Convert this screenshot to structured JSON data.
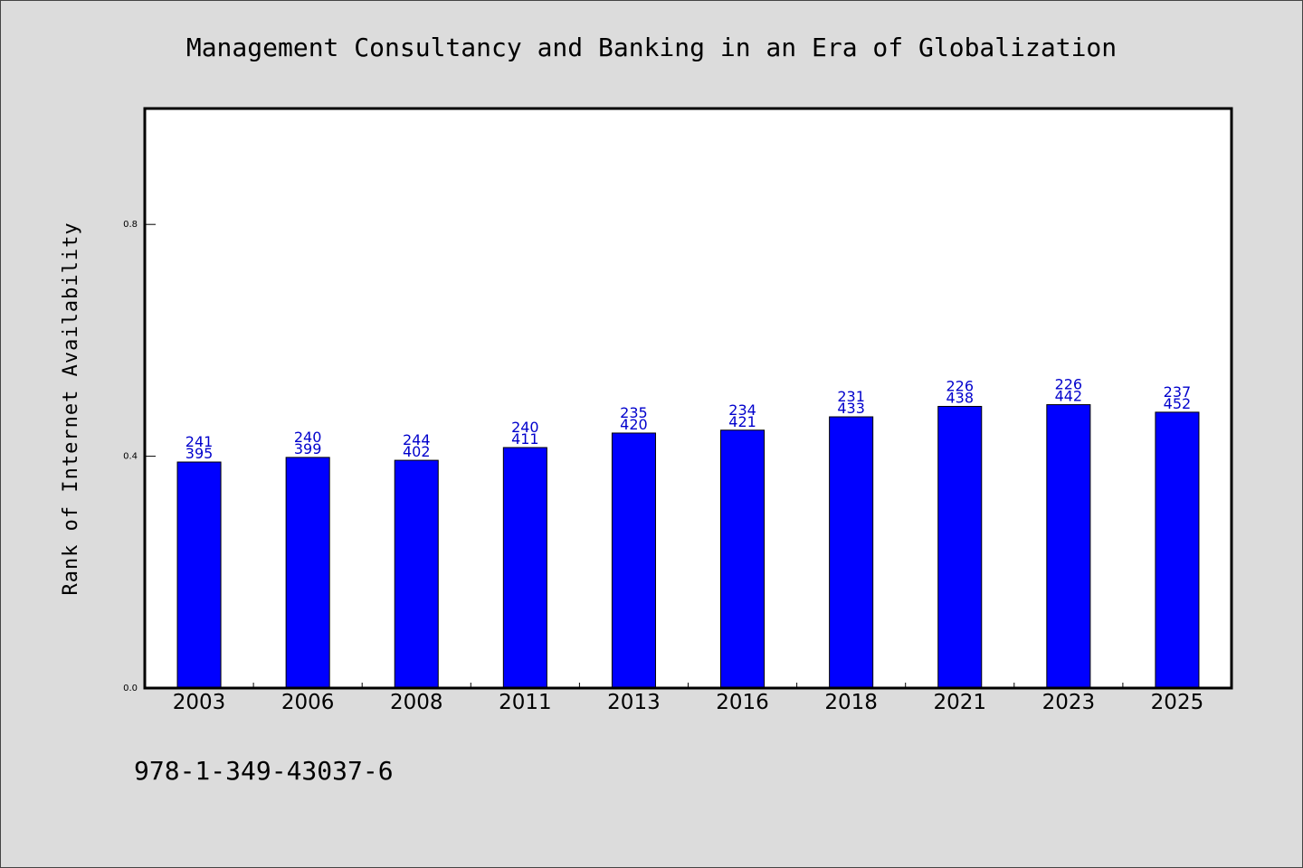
{
  "chart_data": {
    "type": "bar",
    "title": "Management Consultancy and Banking in an Era of Globalization",
    "xlabel": "",
    "ylabel": "Rank of Internet Availability",
    "categories": [
      "2003",
      "2006",
      "2008",
      "2011",
      "2013",
      "2016",
      "2018",
      "2021",
      "2023",
      "2025"
    ],
    "values": [
      0.39,
      0.398,
      0.393,
      0.415,
      0.44,
      0.445,
      0.468,
      0.486,
      0.489,
      0.476
    ],
    "data_labels_top": [
      "241",
      "240",
      "244",
      "240",
      "235",
      "234",
      "231",
      "226",
      "226",
      "237"
    ],
    "data_labels_bottom": [
      "395",
      "399",
      "402",
      "411",
      "420",
      "421",
      "433",
      "438",
      "442",
      "452"
    ],
    "ylim": [
      0.0,
      1.0
    ],
    "yticks": [
      0.0,
      0.4,
      0.8
    ],
    "ytick_labels": [
      "0.0",
      "0.4",
      "0.8"
    ],
    "grid": false,
    "legend": "none",
    "colors": {
      "bar": "#0000ff",
      "data_label": "#0000cc",
      "plot_bg": "#ffffff",
      "figure_bg": "#dcdcdc"
    }
  },
  "footer": {
    "text": "978-1-349-43037-6"
  }
}
